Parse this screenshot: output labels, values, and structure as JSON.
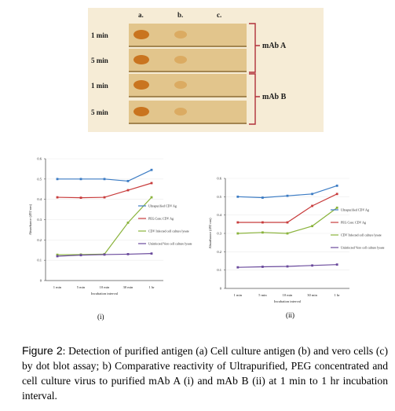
{
  "blot": {
    "columns": [
      "a.",
      "b.",
      "c."
    ],
    "rows": [
      "1 min",
      "5 min",
      "1 min",
      "5 min"
    ],
    "groups": [
      "mAb A",
      "mAb B"
    ],
    "colors": {
      "strip": "#e2c58c",
      "dot_strong": "#c9741f",
      "dot_weak": "#d9a65a",
      "band": "#7a5a28"
    }
  },
  "chart_data": [
    {
      "type": "line",
      "categories": [
        "1 min",
        "5 min",
        "10 min",
        "30 min",
        "1 hr"
      ],
      "ylim": [
        0,
        0.6
      ],
      "yticks": [
        "0",
        "0.1",
        "0.2",
        "0.3",
        "0.4",
        "0.5",
        "0.6"
      ],
      "xlabel": "Incubation interval",
      "ylabel": "Absorbance (492 nm)",
      "series": [
        {
          "name": "Ultrapurified CDV Ag",
          "values": [
            0.5,
            0.5,
            0.5,
            0.49,
            0.545
          ],
          "color": "#3c7cc4"
        },
        {
          "name": "PEG Conc CDV Ag",
          "values": [
            0.41,
            0.408,
            0.41,
            0.445,
            0.48
          ],
          "color": "#c83c3c"
        },
        {
          "name": "CDV Infected cell culture lysate",
          "values": [
            0.127,
            0.128,
            0.13,
            0.285,
            0.41
          ],
          "color": "#8ab33c"
        },
        {
          "name": "Uninfected Vero cell culture lysate",
          "values": [
            0.12,
            0.125,
            0.128,
            0.13,
            0.133
          ],
          "color": "#6a4a9c"
        }
      ]
    },
    {
      "type": "line",
      "categories": [
        "1 min",
        "5 min",
        "10 min",
        "30 min",
        "1 hr"
      ],
      "ylim": [
        0,
        0.6
      ],
      "yticks": [
        "0",
        "0.1",
        "0.2",
        "0.3",
        "0.4",
        "0.5",
        "0.6"
      ],
      "xlabel": "Incubation interval",
      "ylabel": "Absorbance (492 nm)",
      "series": [
        {
          "name": "Ultrapurified CDV Ag",
          "values": [
            0.5,
            0.495,
            0.505,
            0.515,
            0.56
          ],
          "color": "#3c7cc4"
        },
        {
          "name": "PEG Conc CDV Ag",
          "values": [
            0.36,
            0.36,
            0.36,
            0.45,
            0.515
          ],
          "color": "#c83c3c"
        },
        {
          "name": "CDV Infected cell culture lysate",
          "values": [
            0.3,
            0.305,
            0.3,
            0.34,
            0.44
          ],
          "color": "#8ab33c"
        },
        {
          "name": "Uninfected Vero cell culture lysate",
          "values": [
            0.115,
            0.118,
            0.12,
            0.125,
            0.13
          ],
          "color": "#6a4a9c"
        }
      ]
    }
  ],
  "panels": [
    "(i)",
    "(ii)"
  ],
  "caption": {
    "label": "Figure 2",
    "text": ": Detection of purified antigen (a) Cell culture antigen (b) and vero cells (c) by dot blot assay; b) Comparative reactivity of Ultrapurified, PEG concentrated and cell culture virus to purified mAb A (i) and mAb B (ii) at 1 min to 1 hr incubation interval."
  }
}
